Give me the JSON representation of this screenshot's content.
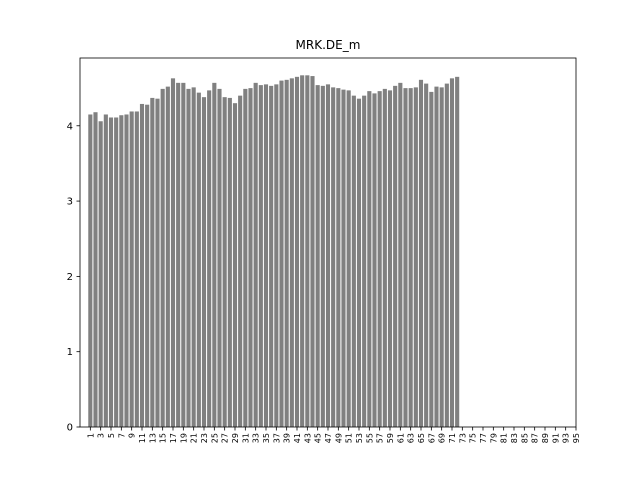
{
  "chart_data": {
    "type": "bar",
    "title": "MRK.DE_m",
    "xlabel": "",
    "ylabel": "",
    "ylim": [
      0,
      4.9
    ],
    "xlim": [
      -1,
      95
    ],
    "yticks": [
      0,
      1,
      2,
      3,
      4
    ],
    "xticks": [
      1,
      3,
      5,
      7,
      9,
      11,
      13,
      15,
      17,
      19,
      21,
      23,
      25,
      27,
      29,
      31,
      33,
      35,
      37,
      39,
      41,
      43,
      45,
      47,
      49,
      51,
      53,
      55,
      57,
      59,
      61,
      63,
      65,
      67,
      69,
      71,
      73,
      75,
      77,
      79,
      81,
      83,
      85,
      87,
      89,
      91,
      93,
      95
    ],
    "grid": false,
    "legend": "none",
    "bar_color": "#808080",
    "x": [
      1,
      2,
      3,
      4,
      5,
      6,
      7,
      8,
      9,
      10,
      11,
      12,
      13,
      14,
      15,
      16,
      17,
      18,
      19,
      20,
      21,
      22,
      23,
      24,
      25,
      26,
      27,
      28,
      29,
      30,
      31,
      32,
      33,
      34,
      35,
      36,
      37,
      38,
      39,
      40,
      41,
      42,
      43,
      44,
      45,
      46,
      47,
      48,
      49,
      50,
      51,
      52,
      53,
      54,
      55,
      56,
      57,
      58,
      59,
      60,
      61,
      62,
      63,
      64,
      65,
      66,
      67,
      68,
      69,
      70,
      71,
      72
    ],
    "values": [
      4.15,
      4.18,
      4.06,
      4.15,
      4.11,
      4.11,
      4.14,
      4.15,
      4.19,
      4.19,
      4.29,
      4.28,
      4.37,
      4.36,
      4.49,
      4.52,
      4.63,
      4.57,
      4.57,
      4.49,
      4.51,
      4.44,
      4.38,
      4.47,
      4.57,
      4.49,
      4.38,
      4.37,
      4.3,
      4.4,
      4.49,
      4.5,
      4.57,
      4.54,
      4.55,
      4.53,
      4.55,
      4.6,
      4.61,
      4.63,
      4.65,
      4.67,
      4.67,
      4.66,
      4.54,
      4.53,
      4.55,
      4.51,
      4.5,
      4.48,
      4.47,
      4.4,
      4.36,
      4.4,
      4.46,
      4.43,
      4.46,
      4.49,
      4.47,
      4.53,
      4.57,
      4.5,
      4.5,
      4.51,
      4.61,
      4.56,
      4.45,
      4.52,
      4.51,
      4.56,
      4.63,
      4.65
    ]
  }
}
